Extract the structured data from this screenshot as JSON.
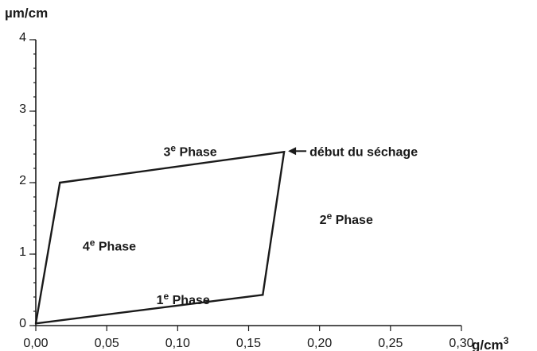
{
  "chart_data": {
    "type": "line",
    "title": "",
    "ylabel": "µm/cm",
    "xlabel": "g/cm³",
    "xlabel_parts": {
      "base": "g/cm",
      "sup": "3"
    },
    "xlim": [
      0,
      0.3
    ],
    "ylim": [
      0,
      4
    ],
    "x_ticks": [
      {
        "value": 0.0,
        "label": "0,00"
      },
      {
        "value": 0.05,
        "label": "0,05"
      },
      {
        "value": 0.1,
        "label": "0,10"
      },
      {
        "value": 0.15,
        "label": "0,15"
      },
      {
        "value": 0.2,
        "label": "0,20"
      },
      {
        "value": 0.25,
        "label": "0,25"
      },
      {
        "value": 0.3,
        "label": "0,30"
      }
    ],
    "y_ticks": [
      {
        "value": 0,
        "label": "0"
      },
      {
        "value": 1,
        "label": "1"
      },
      {
        "value": 2,
        "label": "2"
      },
      {
        "value": 3,
        "label": "3"
      },
      {
        "value": 4,
        "label": "4"
      }
    ],
    "y_minor_step": 0.2,
    "grid": false,
    "series": [
      {
        "points": [
          {
            "x": 0.0,
            "y": 0.03
          },
          {
            "x": 0.16,
            "y": 0.43
          },
          {
            "x": 0.175,
            "y": 2.43
          },
          {
            "x": 0.017,
            "y": 2.0
          },
          {
            "x": 0.0,
            "y": 0.03
          }
        ]
      }
    ],
    "annotations": [
      {
        "id": "phase-1",
        "num": "1",
        "sup": "e",
        "word": "Phase",
        "x": 0.085,
        "y": 0.3
      },
      {
        "id": "phase-2",
        "num": "2",
        "sup": "e",
        "word": "Phase",
        "x": 0.2,
        "y": 1.42
      },
      {
        "id": "phase-3",
        "num": "3",
        "sup": "e",
        "word": "Phase",
        "x": 0.09,
        "y": 2.37
      },
      {
        "id": "phase-4",
        "num": "4",
        "sup": "e",
        "word": "Phase",
        "x": 0.033,
        "y": 1.05
      }
    ],
    "arrow_note": {
      "text": "début du séchage",
      "x": 0.175,
      "y": 2.43
    }
  }
}
